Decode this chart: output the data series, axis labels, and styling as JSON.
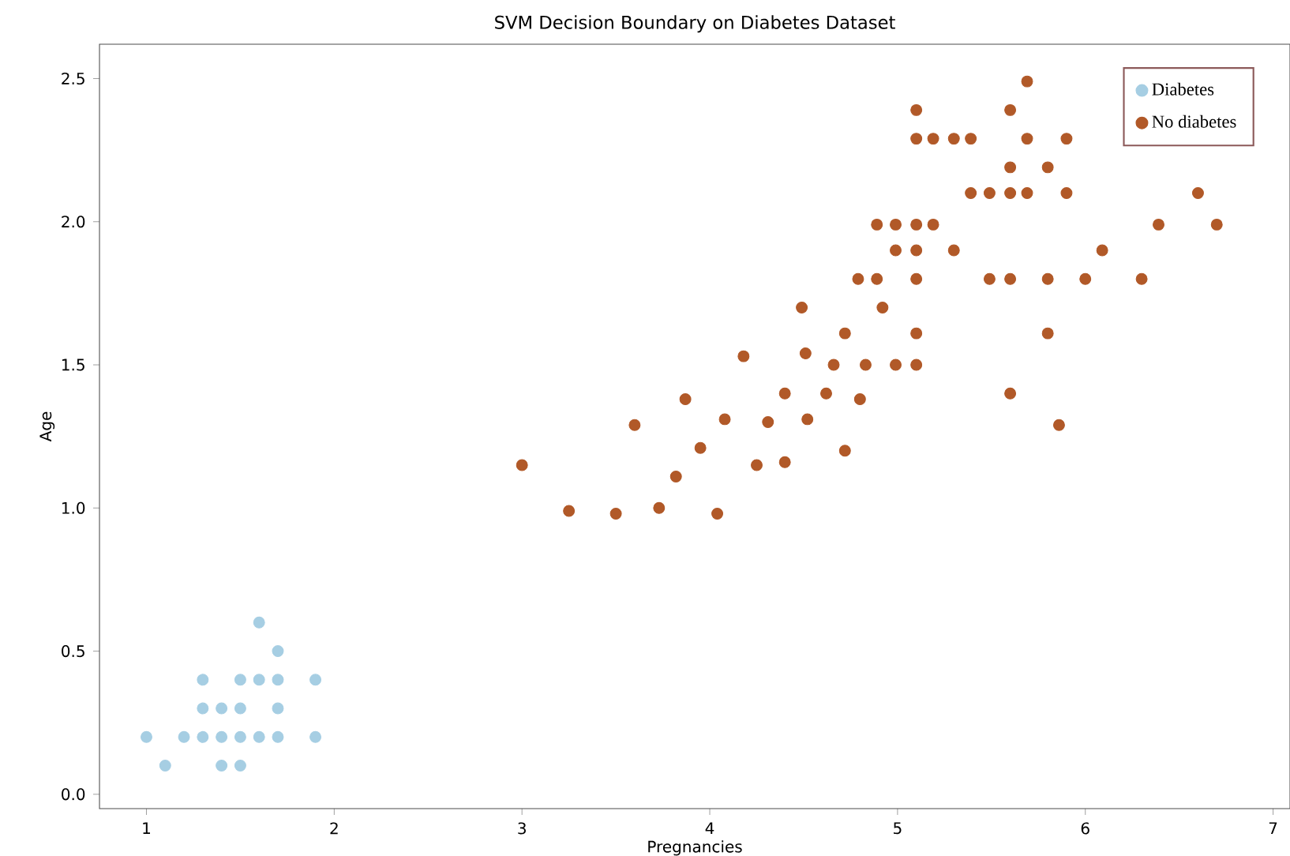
{
  "chart_data": {
    "type": "scatter",
    "title": "SVM Decision Boundary on Diabetes Dataset",
    "xlabel": "Pregnancies",
    "ylabel": "Age",
    "xlim": [
      0.75,
      7.09
    ],
    "ylim": [
      -0.05,
      2.62
    ],
    "xticks": [
      1,
      2,
      3,
      4,
      5,
      6,
      7
    ],
    "yticks": [
      {
        "value": 0,
        "label": "0.0"
      },
      0.5,
      {
        "value": 1,
        "label": "1.0"
      },
      1.5,
      {
        "value": 2,
        "label": "2.0"
      },
      2.5
    ],
    "marker": "circle",
    "grid": false,
    "legend": "top right",
    "series": [
      {
        "name": "Diabetes",
        "color": "#a6cee3",
        "x": [
          1.0,
          1.2,
          1.3,
          1.4,
          1.5,
          1.6,
          1.7,
          1.9,
          1.1,
          1.4,
          1.5,
          1.3,
          1.4,
          1.5,
          1.7,
          1.3,
          1.5,
          1.6,
          1.7,
          1.9,
          1.7,
          1.6
        ],
        "values": [
          0.2,
          0.2,
          0.2,
          0.2,
          0.2,
          0.2,
          0.2,
          0.2,
          0.1,
          0.1,
          0.1,
          0.3,
          0.3,
          0.3,
          0.3,
          0.4,
          0.4,
          0.4,
          0.4,
          0.4,
          0.5,
          0.6
        ]
      },
      {
        "name": "No diabetes",
        "color": "#b15928",
        "x": [
          3.0,
          3.25,
          3.5,
          3.73,
          3.82,
          3.6,
          3.87,
          3.95,
          4.04,
          4.08,
          4.18,
          4.25,
          4.31,
          4.4,
          4.4,
          4.49,
          4.51,
          4.52,
          4.62,
          4.66,
          4.72,
          4.72,
          4.8,
          4.83,
          4.79,
          4.89,
          4.92,
          4.99,
          5.1,
          5.1,
          5.1,
          4.89,
          4.99,
          5.1,
          5.19,
          4.99,
          5.1,
          5.3,
          5.1,
          5.19,
          5.3,
          5.39,
          5.1,
          5.69,
          5.6,
          5.69,
          5.9,
          5.6,
          5.8,
          5.39,
          5.49,
          5.6,
          5.69,
          5.9,
          6.6,
          6.39,
          6.7,
          6.09,
          5.49,
          5.6,
          5.8,
          6.0,
          6.3,
          5.8,
          5.6,
          5.86
        ],
        "values": [
          1.15,
          0.99,
          0.98,
          1.0,
          1.11,
          1.29,
          1.38,
          1.21,
          0.98,
          1.31,
          1.53,
          1.15,
          1.3,
          1.16,
          1.4,
          1.7,
          1.54,
          1.31,
          1.4,
          1.5,
          1.61,
          1.2,
          1.38,
          1.5,
          1.8,
          1.8,
          1.7,
          1.5,
          1.5,
          1.61,
          1.8,
          1.99,
          1.99,
          1.99,
          1.99,
          1.9,
          1.9,
          1.9,
          2.29,
          2.29,
          2.29,
          2.29,
          2.39,
          2.49,
          2.39,
          2.29,
          2.29,
          2.19,
          2.19,
          2.1,
          2.1,
          2.1,
          2.1,
          2.1,
          2.1,
          1.99,
          1.99,
          1.9,
          1.8,
          1.8,
          1.8,
          1.8,
          1.8,
          1.61,
          1.4,
          1.29
        ]
      }
    ]
  }
}
